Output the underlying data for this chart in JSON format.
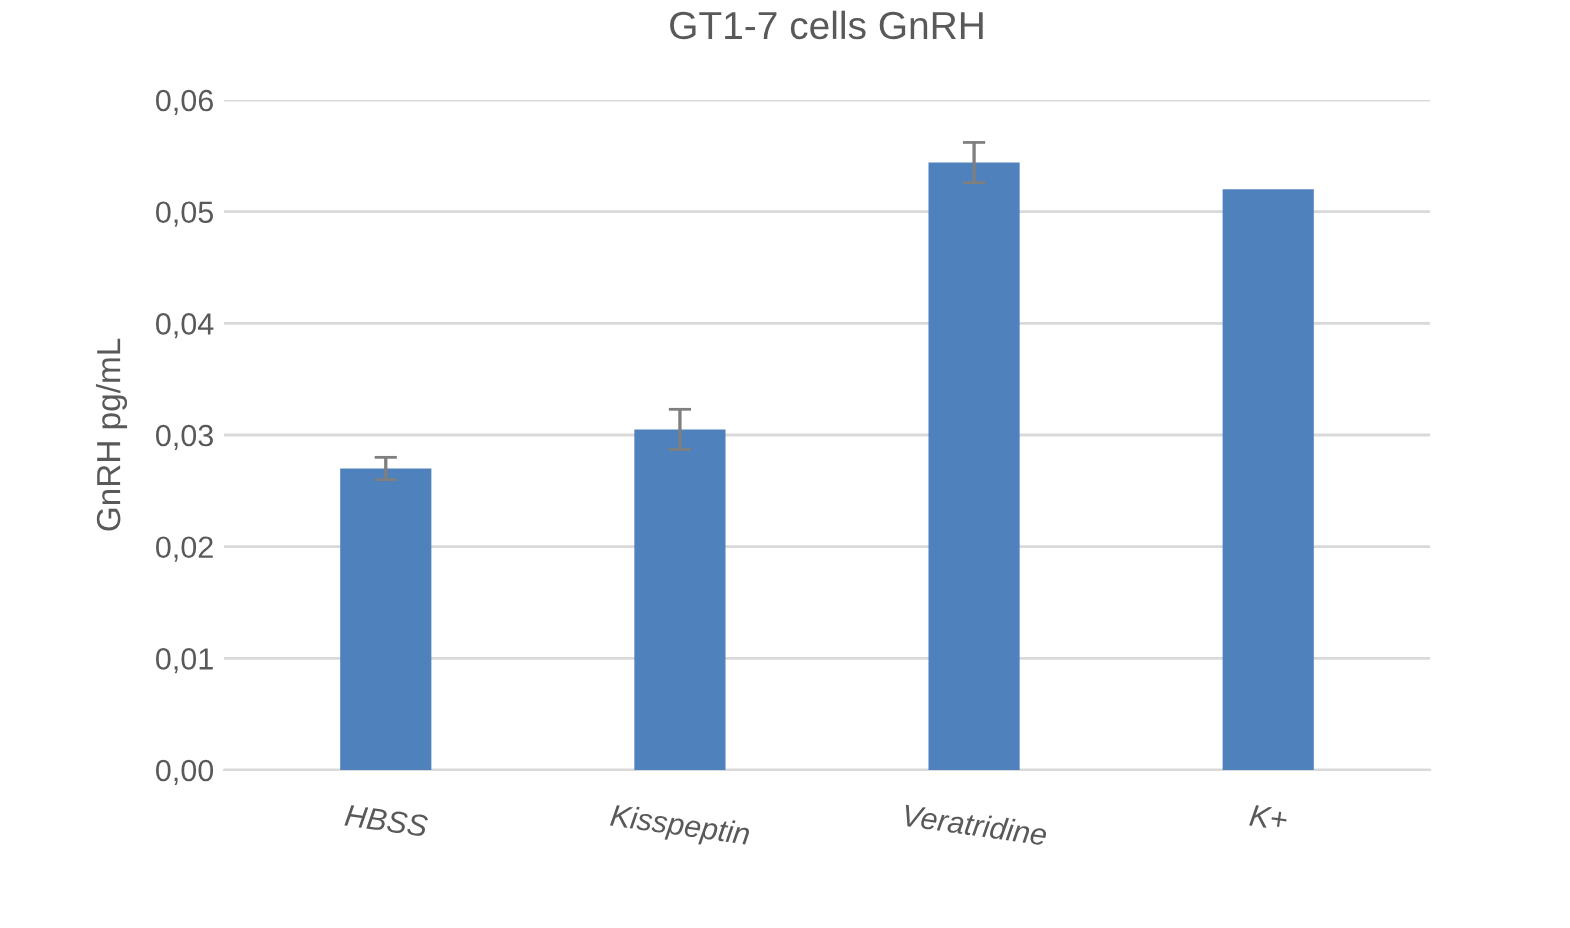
{
  "chart_data": {
    "type": "bar",
    "title": "GT1-7 cells GnRH",
    "ylabel": "GnRH pg/mL",
    "categories": [
      "HBSS",
      "Kisspeptin",
      "Veratridine",
      "K+"
    ],
    "values": [
      0.027,
      0.0305,
      0.0544,
      0.052
    ],
    "errors": [
      0.001,
      0.0018,
      0.0018,
      null
    ],
    "color": "#4f81bd",
    "ylim": [
      0,
      0.06
    ],
    "yticks": [
      {
        "value": 0,
        "label": "0,00"
      },
      {
        "value": 0.01,
        "label": "0,01"
      },
      {
        "value": 0.02,
        "label": "0,02"
      },
      {
        "value": 0.03,
        "label": "0,03"
      },
      {
        "value": 0.04,
        "label": "0,04"
      },
      {
        "value": 0.05,
        "label": "0,05"
      },
      {
        "value": 0.06,
        "label": "0,06"
      }
    ],
    "grid": "y",
    "legend": false
  }
}
